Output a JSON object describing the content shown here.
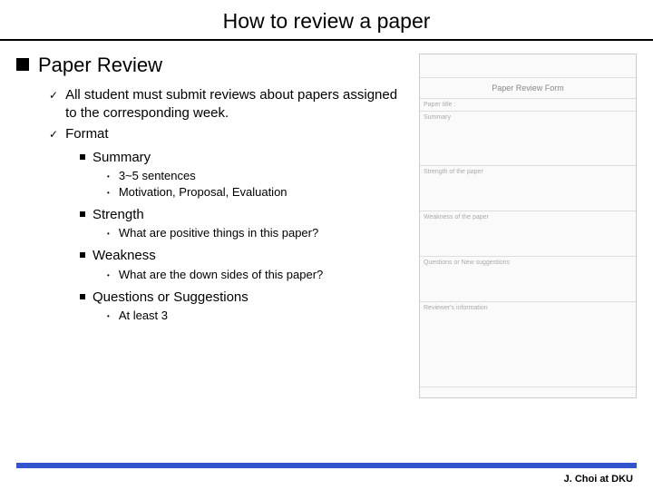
{
  "title": "How to review a paper",
  "heading": "Paper Review",
  "level2": [
    "All student must submit reviews about papers assigned to the corresponding week.",
    "Format"
  ],
  "summary": {
    "label": "Summary",
    "items": [
      "3~5 sentences",
      "Motivation, Proposal, Evaluation"
    ]
  },
  "strength": {
    "label": "Strength",
    "items": [
      "What are positive things in this paper?"
    ]
  },
  "weakness": {
    "label": "Weakness",
    "items": [
      "What are the down sides of this paper?"
    ]
  },
  "questions": {
    "label": "Questions or Suggestions",
    "items": [
      "At least 3"
    ]
  },
  "footer": "J. Choi at DKU",
  "footer_bar_color": "#3355cc",
  "form": {
    "title": "Paper Review Form",
    "paper_title_label": "Paper title :",
    "summary_label": "Summary",
    "strength_label": "Strength of the paper",
    "weakness_label": "Weakness of the paper",
    "questions_label": "Questions or New suggestions",
    "reviewer_label": "Reviewer's information"
  }
}
